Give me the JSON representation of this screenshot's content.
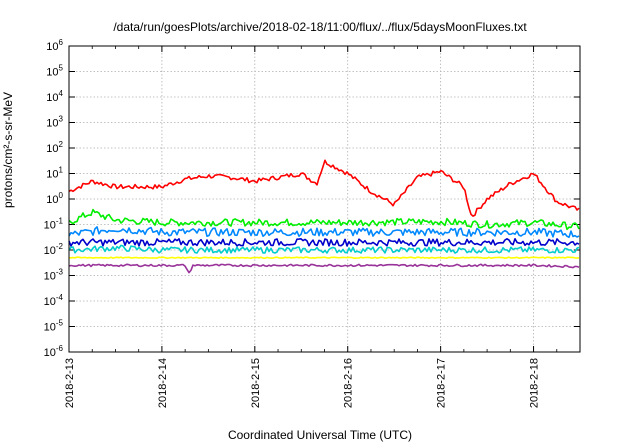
{
  "chart_data": {
    "type": "line",
    "title": "/data/run/goesPlots/archive/2018-02-18/11:00/flux/../flux/5daysMoonFluxes.txt",
    "xlabel": "Coordinated Universal Time (UTC)",
    "ylabel": "protons/cm²-s-sr-MeV",
    "yscale": "log",
    "ylim": [
      1e-06,
      1000000.0
    ],
    "xlim": [
      "2018-02-13T00:00",
      "2018-02-18T12:00"
    ],
    "x_ticks": [
      "2018-2-13",
      "2018-2-14",
      "2018-2-15",
      "2018-2-16",
      "2018-2-17",
      "2018-2-18"
    ],
    "y_ticks": [
      {
        "base": "10",
        "exp": "-6"
      },
      {
        "base": "10",
        "exp": "-5"
      },
      {
        "base": "10",
        "exp": "-4"
      },
      {
        "base": "10",
        "exp": "-3"
      },
      {
        "base": "10",
        "exp": "-2"
      },
      {
        "base": "10",
        "exp": "-1"
      },
      {
        "base": "10",
        "exp": "0"
      },
      {
        "base": "10",
        "exp": "1"
      },
      {
        "base": "10",
        "exp": "2"
      },
      {
        "base": "10",
        "exp": "3"
      },
      {
        "base": "10",
        "exp": "4"
      },
      {
        "base": "10",
        "exp": "5"
      },
      {
        "base": "10",
        "exp": "6"
      }
    ],
    "grid": true,
    "legend": "none",
    "series": [
      {
        "color": "#ff0000",
        "x": [
          "2018-02-13T00:00",
          "2018-02-13T06:00",
          "2018-02-13T12:00",
          "2018-02-13T18:00",
          "2018-02-14T00:00",
          "2018-02-14T06:00",
          "2018-02-14T12:00",
          "2018-02-14T18:00",
          "2018-02-15T00:00",
          "2018-02-15T06:00",
          "2018-02-15T12:00",
          "2018-02-15T16:00",
          "2018-02-15T18:00",
          "2018-02-16T00:00",
          "2018-02-16T06:00",
          "2018-02-16T12:00",
          "2018-02-16T18:00",
          "2018-02-17T00:00",
          "2018-02-17T06:00",
          "2018-02-17T08:00",
          "2018-02-17T12:00",
          "2018-02-17T18:00",
          "2018-02-18T00:00",
          "2018-02-18T06:00",
          "2018-02-18T12:00"
        ],
        "y": [
          2,
          5,
          3,
          3,
          3,
          6,
          8,
          7,
          5,
          7,
          10,
          4,
          30,
          10,
          2,
          0.6,
          7,
          12,
          3,
          0.2,
          1,
          4,
          10,
          0.8,
          0.35
        ]
      },
      {
        "color": "#00ee00",
        "x": [
          "2018-02-13T00:00",
          "2018-02-13T06:00",
          "2018-02-13T12:00",
          "2018-02-14T00:00",
          "2018-02-15T00:00",
          "2018-02-16T00:00",
          "2018-02-17T00:00",
          "2018-02-17T12:00",
          "2018-02-18T00:00",
          "2018-02-18T12:00"
        ],
        "y": [
          0.12,
          0.3,
          0.15,
          0.12,
          0.12,
          0.12,
          0.13,
          0.1,
          0.12,
          0.08
        ]
      },
      {
        "color": "#0088ff",
        "x": [
          "2018-02-13T00:00",
          "2018-02-13T12:00",
          "2018-02-14T00:00",
          "2018-02-15T00:00",
          "2018-02-16T00:00",
          "2018-02-17T00:00",
          "2018-02-18T00:00",
          "2018-02-18T12:00"
        ],
        "y": [
          0.04,
          0.07,
          0.05,
          0.05,
          0.05,
          0.05,
          0.05,
          0.04
        ]
      },
      {
        "color": "#00cccc",
        "x": [
          "2018-02-13T00:00",
          "2018-02-13T12:00",
          "2018-02-14T00:00",
          "2018-02-15T00:00",
          "2018-02-16T00:00",
          "2018-02-17T00:00",
          "2018-02-18T00:00",
          "2018-02-18T12:00"
        ],
        "y": [
          0.01,
          0.012,
          0.01,
          0.01,
          0.01,
          0.01,
          0.01,
          0.01
        ]
      },
      {
        "color": "#0000cc",
        "x": [
          "2018-02-13T00:00",
          "2018-02-13T12:00",
          "2018-02-14T00:00",
          "2018-02-15T00:00",
          "2018-02-16T00:00",
          "2018-02-17T00:00",
          "2018-02-18T00:00",
          "2018-02-18T12:00"
        ],
        "y": [
          0.02,
          0.02,
          0.02,
          0.02,
          0.02,
          0.02,
          0.02,
          0.02
        ]
      },
      {
        "color": "#ffff00",
        "x": [
          "2018-02-13T00:00",
          "2018-02-18T12:00"
        ],
        "y": [
          0.005,
          0.005
        ]
      },
      {
        "color": "#993399",
        "x": [
          "2018-02-13T00:00",
          "2018-02-14T06:00",
          "2018-02-14T07:00",
          "2018-02-14T08:00",
          "2018-02-15T06:00",
          "2018-02-16T00:00",
          "2018-02-17T00:00",
          "2018-02-18T00:00",
          "2018-02-18T12:00"
        ],
        "y": [
          0.0025,
          0.0025,
          0.0012,
          0.0025,
          0.0025,
          0.0025,
          0.0025,
          0.0025,
          0.0022
        ]
      }
    ]
  }
}
